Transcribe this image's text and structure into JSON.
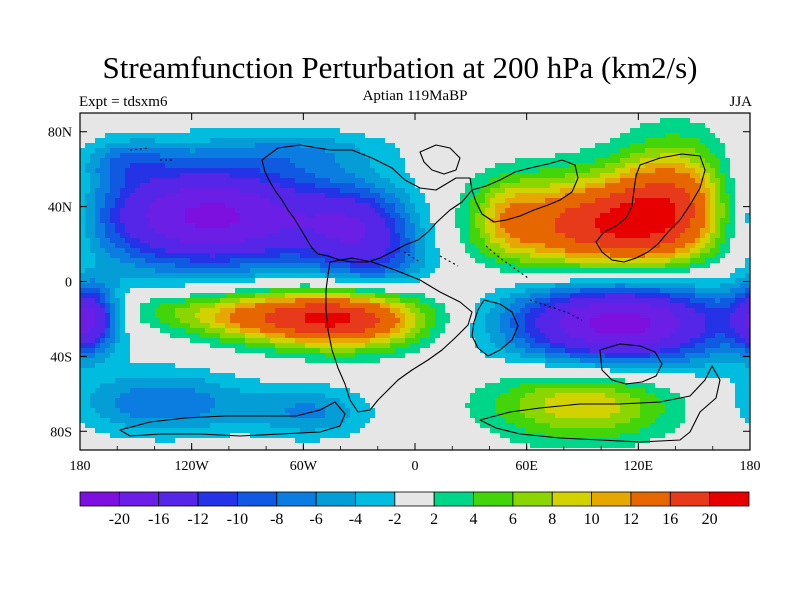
{
  "chart_data": {
    "type": "heatmap",
    "title": "Streamfunction Perturbation at 200 hPa (km2/s)",
    "subtitle_left": "Expt = tdsxm6",
    "subtitle_center": "Aptian   119MaBP",
    "subtitle_right": "JJA",
    "x_ticks": [
      "180",
      "120W",
      "60W",
      "0",
      "60E",
      "120E",
      "180"
    ],
    "x_tick_values": [
      -180,
      -120,
      -60,
      0,
      60,
      120,
      180
    ],
    "y_ticks": [
      "80N",
      "40N",
      "0",
      "40S",
      "80S"
    ],
    "y_tick_values": [
      80,
      40,
      0,
      -40,
      -80
    ],
    "xlim": [
      -180,
      180
    ],
    "ylim": [
      -90,
      90
    ],
    "colorbar_levels": [
      -20,
      -16,
      -12,
      -10,
      -8,
      -6,
      -4,
      -2,
      2,
      4,
      6,
      8,
      10,
      12,
      16,
      20
    ],
    "colorbar_labels": [
      "-20",
      "-16",
      "-12",
      "-10",
      "-8",
      "-6",
      "-4",
      "-2",
      "2",
      "4",
      "6",
      "8",
      "10",
      "12",
      "16",
      "20"
    ],
    "colors": [
      "#7d10de",
      "#6b1ee6",
      "#5526e8",
      "#2433e6",
      "#0f5ae0",
      "#0c7de0",
      "#049dd6",
      "#00bde0",
      "#e6e6e6",
      "#00d68a",
      "#44d40a",
      "#8bd600",
      "#d2d200",
      "#e6a800",
      "#e66600",
      "#e63a1a",
      "#e60000"
    ],
    "features": [
      {
        "lon": -110,
        "lat": 35,
        "value": -21,
        "sx": 48,
        "sy": 20
      },
      {
        "lon": -30,
        "lat": 30,
        "value": -10,
        "sx": 22,
        "sy": 15
      },
      {
        "lon": -20,
        "lat": 10,
        "value": -6,
        "sx": 22,
        "sy": 12
      },
      {
        "lon": -155,
        "lat": 65,
        "value": -5,
        "sx": 18,
        "sy": 8
      },
      {
        "lon": -60,
        "lat": 70,
        "value": -4,
        "sx": 35,
        "sy": 8
      },
      {
        "lon": 100,
        "lat": 30,
        "value": 19,
        "sx": 40,
        "sy": 18
      },
      {
        "lon": 140,
        "lat": 45,
        "value": 12,
        "sx": 22,
        "sy": 22
      },
      {
        "lon": 50,
        "lat": 35,
        "value": 5,
        "sx": 12,
        "sy": 14
      },
      {
        "lon": -40,
        "lat": -20,
        "value": 20,
        "sx": 32,
        "sy": 11
      },
      {
        "lon": -95,
        "lat": -18,
        "value": 9,
        "sx": 28,
        "sy": 9
      },
      {
        "lon": -140,
        "lat": -15,
        "value": 3,
        "sx": 18,
        "sy": 7
      },
      {
        "lon": 110,
        "lat": -22,
        "value": -22,
        "sx": 42,
        "sy": 16
      },
      {
        "lon": -175,
        "lat": -20,
        "value": -14,
        "sx": 10,
        "sy": 12
      },
      {
        "lon": 90,
        "lat": -65,
        "value": 10,
        "sx": 35,
        "sy": 14
      },
      {
        "lon": -135,
        "lat": -65,
        "value": -8,
        "sx": 34,
        "sy": 12
      },
      {
        "lon": -55,
        "lat": -70,
        "value": -6,
        "sx": 22,
        "sy": 10
      }
    ]
  }
}
